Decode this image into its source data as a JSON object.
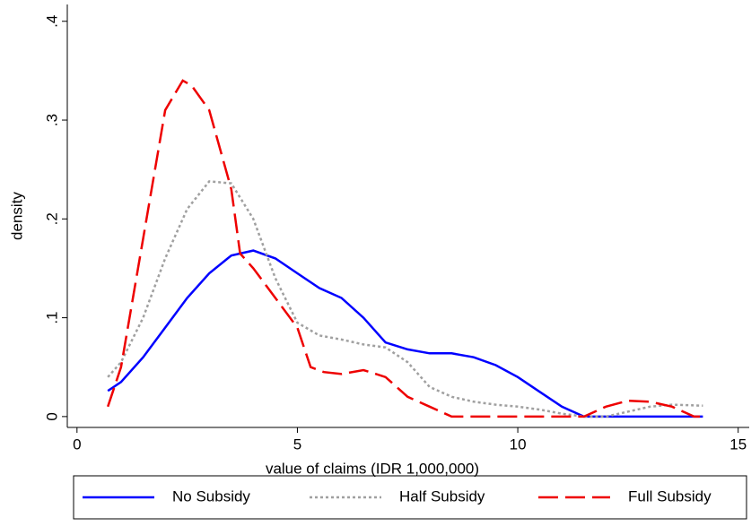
{
  "chart_data": {
    "type": "line",
    "xlabel": "value of claims (IDR 1,000,000)",
    "ylabel": "density",
    "xlim": [
      -0.22,
      15.25
    ],
    "ylim": [
      -0.011,
      0.417
    ],
    "xticks": [
      0,
      5,
      10,
      15
    ],
    "yticks": [
      0,
      {
        "value": 0.1,
        "label": ".1"
      },
      {
        "value": 0.2,
        "label": ".2"
      },
      {
        "value": 0.3,
        "label": ".3"
      },
      {
        "value": 0.4,
        "label": ".4"
      }
    ],
    "grid": false,
    "legend": "bottom",
    "series": [
      {
        "name": "No Subsidy",
        "color": "#0000ff",
        "dash": "solid",
        "x": [
          0.7,
          1,
          1.5,
          2,
          2.5,
          3,
          3.5,
          4,
          4.5,
          5,
          5.5,
          6,
          6.5,
          7,
          7.5,
          8,
          8.5,
          9,
          9.5,
          10,
          10.5,
          11,
          11.5,
          12,
          13,
          14.2
        ],
        "values": [
          0.026,
          0.035,
          0.06,
          0.09,
          0.12,
          0.145,
          0.163,
          0.168,
          0.16,
          0.145,
          0.13,
          0.12,
          0.1,
          0.075,
          0.068,
          0.064,
          0.064,
          0.06,
          0.052,
          0.04,
          0.025,
          0.01,
          0,
          0,
          0,
          0
        ]
      },
      {
        "name": "Half Subsidy",
        "color": "#a0a0a0",
        "dash": "dotted",
        "x": [
          0.7,
          1,
          1.5,
          2,
          2.5,
          3,
          3.5,
          4,
          4.5,
          5,
          5.5,
          6,
          6.5,
          7,
          7.5,
          8,
          8.5,
          9,
          9.5,
          10,
          10.5,
          11,
          11.5,
          12,
          12.5,
          13,
          13.5,
          14.2
        ],
        "values": [
          0.04,
          0.055,
          0.1,
          0.16,
          0.21,
          0.238,
          0.236,
          0.2,
          0.14,
          0.095,
          0.082,
          0.078,
          0.073,
          0.07,
          0.055,
          0.03,
          0.02,
          0.015,
          0.012,
          0.01,
          0.007,
          0.003,
          0,
          0,
          0.005,
          0.01,
          0.012,
          0.011
        ]
      },
      {
        "name": "Full Subsidy",
        "color": "#ee0000",
        "dash": "dashed",
        "x": [
          0.7,
          1,
          1.5,
          2,
          2.4,
          2.6,
          3,
          3.5,
          3.7,
          4,
          4.5,
          5,
          5.3,
          5.6,
          6,
          6.5,
          7,
          7.5,
          8,
          8.5,
          9,
          10,
          11,
          11.5,
          12,
          12.5,
          13,
          13.5,
          14,
          14.2
        ],
        "values": [
          0.01,
          0.05,
          0.18,
          0.31,
          0.34,
          0.335,
          0.31,
          0.23,
          0.165,
          0.15,
          0.12,
          0.09,
          0.05,
          0.045,
          0.043,
          0.047,
          0.04,
          0.02,
          0.01,
          0,
          0,
          0,
          0,
          0,
          0.01,
          0.016,
          0.015,
          0.01,
          0,
          0
        ]
      }
    ]
  }
}
